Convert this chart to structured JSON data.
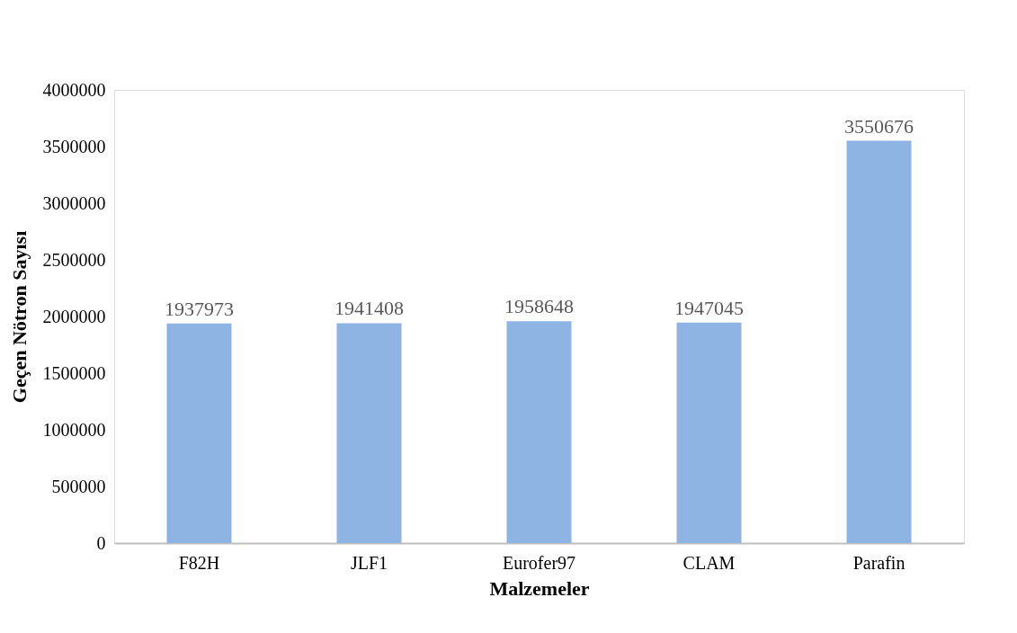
{
  "chart_data": {
    "type": "bar",
    "xlabel": "Malzemeler",
    "ylabel": "Geçen Nötron Sayısı",
    "categories": [
      "F82H",
      "JLF1",
      "Eurofer97",
      "CLAM",
      "Parafin"
    ],
    "values": [
      1937973,
      1941408,
      1958648,
      1947045,
      3550676
    ],
    "color": "#8db4e2",
    "ylim": [
      0,
      4000000
    ],
    "yticks": [
      0,
      500000,
      1000000,
      1500000,
      2000000,
      2500000,
      3000000,
      3500000,
      4000000
    ],
    "grid": false,
    "data_labels": true
  }
}
